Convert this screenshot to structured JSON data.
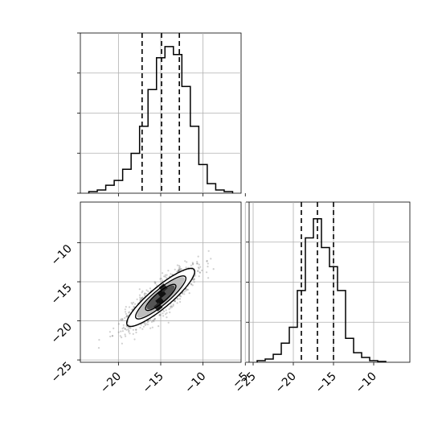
{
  "chart_data": {
    "type": "corner",
    "panels": [
      {
        "type": "histogram",
        "position": "top-left",
        "xlim": [
          -24.5,
          -5.5
        ],
        "bin_edges": [
          -23.5,
          -22.5,
          -21.5,
          -20.5,
          -19.5,
          -18.5,
          -17.5,
          -16.5,
          -15.5,
          -14.5,
          -13.5,
          -12.5,
          -11.5,
          -10.5,
          -9.5,
          -8.5,
          -7.5,
          -6.5
        ],
        "counts": [
          0.01,
          0.02,
          0.05,
          0.08,
          0.15,
          0.25,
          0.42,
          0.65,
          0.85,
          0.92,
          0.87,
          0.67,
          0.42,
          0.18,
          0.06,
          0.02,
          0.01
        ],
        "quantiles": [
          -17.2,
          -14.9,
          -12.8
        ],
        "grid": true
      },
      {
        "type": "2d-histogram-contour",
        "position": "bottom-left",
        "xlim": [
          -24.5,
          -5.5
        ],
        "ylim": [
          -25.3,
          -4.8
        ],
        "x_ticks": [
          -20,
          -15,
          -10,
          -5
        ],
        "x_tick_labels": [
          "−20",
          "−15",
          "−10",
          "−5"
        ],
        "y_ticks": [
          -10,
          -15,
          -20,
          -25
        ],
        "y_tick_labels": [
          "−10",
          "−15",
          "−20",
          "−25"
        ],
        "center": [
          -15,
          -17
        ],
        "grid": true
      },
      {
        "type": "histogram",
        "position": "bottom-right",
        "xlim": [
          -25.5,
          -5.5
        ],
        "bin_edges": [
          -24.5,
          -23.5,
          -22.5,
          -21.5,
          -20.5,
          -19.5,
          -18.5,
          -17.5,
          -16.5,
          -15.5,
          -14.5,
          -13.5,
          -12.5,
          -11.5,
          -10.5,
          -9.5,
          -8.5
        ],
        "counts": [
          0.01,
          0.02,
          0.05,
          0.12,
          0.22,
          0.45,
          0.78,
          0.9,
          0.72,
          0.6,
          0.45,
          0.15,
          0.06,
          0.03,
          0.01,
          0.005
        ],
        "quantiles": [
          -19.0,
          -17.0,
          -15.0
        ],
        "x_ticks": [
          -25,
          -20,
          -15,
          -10
        ],
        "x_tick_labels": [
          "−25",
          "−20",
          "−15",
          "−10"
        ],
        "grid": true
      }
    ]
  }
}
